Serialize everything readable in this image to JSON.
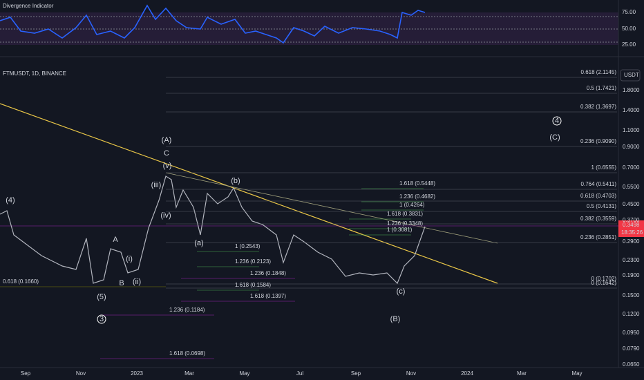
{
  "indicator": {
    "title": "Divergence Indicator",
    "ticks": [
      "75.00",
      "50.00",
      "25.00"
    ]
  },
  "symbol": "FTMUSDT, 1D, BINANCE",
  "currency": "USDT",
  "price_axis": [
    "1.8000",
    "1.4000",
    "1.1000",
    "0.9000",
    "0.7000",
    "0.5500",
    "0.4500",
    "0.3700",
    "0.2900",
    "0.2300",
    "0.1900",
    "0.1500",
    "0.1200",
    "0.0950",
    "0.0790",
    "0.0650"
  ],
  "price_tag": {
    "price": "0.3498",
    "countdown": "18:35:26"
  },
  "time_axis": [
    "Sep",
    "Nov",
    "2023",
    "Mar",
    "May",
    "Jul",
    "Sep",
    "Nov",
    "2024",
    "Mar",
    "May"
  ],
  "fib_levels": [
    "0.618 (2.1145)",
    "0.5 (1.7421)",
    "0.382 (1.3697)",
    "0.236 (0.9090)",
    "1 (0.6555)",
    "0.764 (0.5411)",
    "0.618 (0.4703)",
    "0.5 (0.4131)",
    "0.382 (0.3559)",
    "0.236 (0.2851)",
    "0 (0.1702)",
    "0 (0.1642)"
  ],
  "green_ext": [
    "1.618 (0.5448)",
    "1.236 (0.4682)",
    "1 (0.4264)",
    "1.618 (0.3831)",
    "1.236 (0.3348)",
    "1 (0.3081)",
    "1 (0.2543)",
    "1.236 (0.2123)",
    "1.618 (0.1584)"
  ],
  "purple_ext": [
    "1.236 (0.1848)",
    "1.618 (0.1397)",
    "1.236 (0.1184)",
    "1.618 (0.0698)"
  ],
  "olive_level": "0.618 (0.1660)",
  "waves": [
    "(4)",
    "(5)",
    "A",
    "B",
    "(i)",
    "(ii)",
    "(iii)",
    "(iv)",
    "(v)",
    "(A)",
    "C",
    "(b)",
    "(a)",
    "(c)",
    "(B)",
    "(C)",
    "4",
    "3"
  ]
}
